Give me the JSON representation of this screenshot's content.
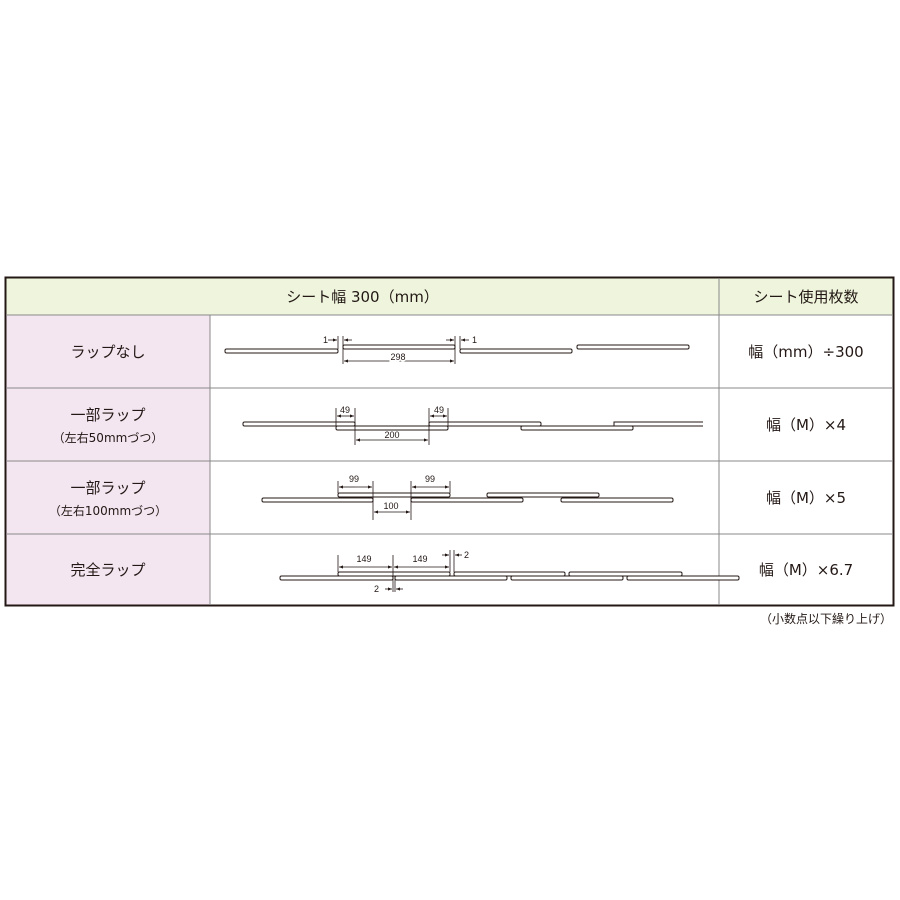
{
  "header": {
    "width_label": "シート幅 300（mm）",
    "count_label": "シート使用枚数"
  },
  "rows": [
    {
      "label": "ラップなし",
      "sub": "",
      "formula": "幅（mm）÷300",
      "dims": [
        "1",
        "298",
        "1"
      ]
    },
    {
      "label": "一部ラップ",
      "sub": "（左右50mmづつ）",
      "formula": "幅（M）×4",
      "dims": [
        "49",
        "49",
        "200"
      ]
    },
    {
      "label": "一部ラップ",
      "sub": "（左右100mmづつ）",
      "formula": "幅（M）×5",
      "dims": [
        "99",
        "99",
        "100"
      ]
    },
    {
      "label": "完全ラップ",
      "sub": "",
      "formula": "幅（M）×6.7",
      "dims": [
        "149",
        "149",
        "2",
        "2"
      ]
    }
  ],
  "footnote": "（小数点以下繰り上げ）",
  "colors": {
    "header_bg": "#eef5dc",
    "label_bg": "#f3e6f0",
    "border": "#231815"
  }
}
